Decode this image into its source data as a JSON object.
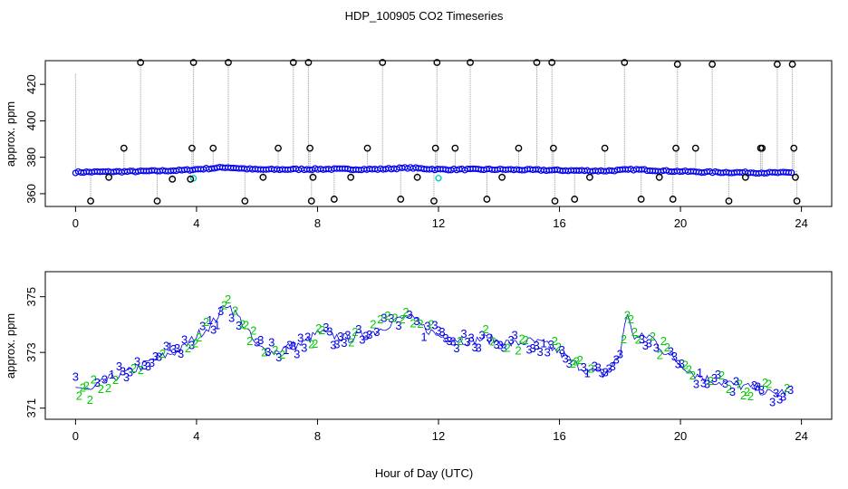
{
  "title": "HDP_100905  CO2 Timeseries",
  "chart_data": [
    {
      "type": "scatter",
      "panel": "top",
      "xlabel": "",
      "ylabel": "approx. ppm",
      "xlim": [
        -1,
        25
      ],
      "ylim": [
        353,
        433
      ],
      "xticks": [
        "0",
        "4",
        "8",
        "12",
        "16",
        "20",
        "24"
      ],
      "yticks": [
        "360",
        "380",
        "400",
        "420"
      ],
      "baseline_level": 372.5,
      "colors": {
        "cal_marker": "#000000",
        "series": "#0000ee",
        "gap": "#00cccc",
        "drop": "#999999"
      },
      "calibration_points_hour_ppm": [
        [
          0.5,
          356
        ],
        [
          1.1,
          369
        ],
        [
          1.6,
          385
        ],
        [
          2.15,
          432
        ],
        [
          2.7,
          356
        ],
        [
          3.2,
          368
        ],
        [
          3.8,
          368
        ],
        [
          3.85,
          385
        ],
        [
          3.9,
          432
        ],
        [
          4.55,
          385
        ],
        [
          5.05,
          432
        ],
        [
          5.6,
          356
        ],
        [
          6.2,
          369
        ],
        [
          6.7,
          385
        ],
        [
          7.2,
          432
        ],
        [
          7.7,
          432
        ],
        [
          7.75,
          385
        ],
        [
          7.8,
          356
        ],
        [
          7.85,
          369
        ],
        [
          8.55,
          357
        ],
        [
          9.1,
          369
        ],
        [
          9.65,
          385
        ],
        [
          10.15,
          432
        ],
        [
          10.75,
          357
        ],
        [
          11.3,
          369
        ],
        [
          11.85,
          356
        ],
        [
          11.9,
          385
        ],
        [
          11.95,
          432
        ],
        [
          12.55,
          385
        ],
        [
          13.05,
          432
        ],
        [
          13.6,
          357
        ],
        [
          14.1,
          369
        ],
        [
          14.65,
          385
        ],
        [
          15.25,
          432
        ],
        [
          15.75,
          432
        ],
        [
          15.8,
          385
        ],
        [
          15.85,
          356
        ],
        [
          16.5,
          357
        ],
        [
          17.0,
          369
        ],
        [
          17.5,
          385
        ],
        [
          18.15,
          432
        ],
        [
          18.7,
          357
        ],
        [
          19.3,
          369
        ],
        [
          19.75,
          357
        ],
        [
          19.85,
          385
        ],
        [
          19.9,
          431
        ],
        [
          20.5,
          385
        ],
        [
          21.05,
          431
        ],
        [
          21.6,
          356
        ],
        [
          22.15,
          369
        ],
        [
          22.65,
          385
        ],
        [
          22.7,
          385
        ],
        [
          23.2,
          431
        ],
        [
          23.7,
          431
        ],
        [
          23.75,
          385
        ],
        [
          23.8,
          369
        ],
        [
          23.85,
          356
        ]
      ],
      "trend_hour_ppm": [
        [
          0,
          371.8
        ],
        [
          2,
          372.2
        ],
        [
          3.5,
          372.8
        ],
        [
          5,
          374.5
        ],
        [
          6,
          373.2
        ],
        [
          8,
          373.5
        ],
        [
          10,
          373.4
        ],
        [
          11,
          374.2
        ],
        [
          12,
          373.3
        ],
        [
          14,
          373.3
        ],
        [
          16,
          372.8
        ],
        [
          17.5,
          372.5
        ],
        [
          18.5,
          373.3
        ],
        [
          19.5,
          372.5
        ],
        [
          21,
          371.8
        ],
        [
          23,
          371.5
        ],
        [
          23.7,
          371.5
        ]
      ]
    },
    {
      "type": "scatter",
      "panel": "bottom",
      "xlabel": "Hour of Day (UTC)",
      "ylabel": "approx. ppm",
      "xlim": [
        -1,
        25
      ],
      "ylim": [
        370.6,
        375.9
      ],
      "xticks": [
        "0",
        "4",
        "8",
        "12",
        "16",
        "20",
        "24"
      ],
      "yticks": [
        "371",
        "373",
        "375"
      ],
      "marker_labels": [
        "1",
        "2",
        "3"
      ],
      "colors": {
        "label_1": "#0000ee",
        "label_2": "#00cc00",
        "label_3": "#0000ee",
        "line": "#0000ee"
      },
      "trend_hour_ppm": [
        [
          0,
          371.8
        ],
        [
          0.5,
          371.6
        ],
        [
          1,
          372.0
        ],
        [
          1.5,
          372.2
        ],
        [
          2,
          372.4
        ],
        [
          2.5,
          372.7
        ],
        [
          3,
          372.9
        ],
        [
          3.5,
          373.1
        ],
        [
          4,
          373.6
        ],
        [
          4.5,
          374.0
        ],
        [
          5,
          374.8
        ],
        [
          5.5,
          374.1
        ],
        [
          6,
          373.2
        ],
        [
          6.5,
          373.0
        ],
        [
          7,
          373.2
        ],
        [
          7.5,
          373.3
        ],
        [
          8,
          373.7
        ],
        [
          8.5,
          373.6
        ],
        [
          9,
          373.5
        ],
        [
          9.5,
          373.6
        ],
        [
          10,
          373.8
        ],
        [
          10.5,
          374.1
        ],
        [
          11,
          374.3
        ],
        [
          11.5,
          373.9
        ],
        [
          12,
          373.6
        ],
        [
          12.5,
          373.5
        ],
        [
          13,
          373.4
        ],
        [
          13.5,
          373.5
        ],
        [
          14,
          373.4
        ],
        [
          14.5,
          373.3
        ],
        [
          15,
          373.4
        ],
        [
          15.5,
          373.3
        ],
        [
          16,
          373.0
        ],
        [
          16.5,
          372.6
        ],
        [
          17,
          372.3
        ],
        [
          17.5,
          372.2
        ],
        [
          18,
          372.9
        ],
        [
          18.2,
          374.4
        ],
        [
          18.5,
          373.5
        ],
        [
          19,
          373.6
        ],
        [
          19.5,
          373.0
        ],
        [
          20,
          372.6
        ],
        [
          20.5,
          372.2
        ],
        [
          21,
          372.0
        ],
        [
          21.5,
          371.9
        ],
        [
          22,
          371.8
        ],
        [
          22.5,
          371.7
        ],
        [
          23,
          371.5
        ],
        [
          23.5,
          371.6
        ],
        [
          23.7,
          371.8
        ]
      ]
    }
  ]
}
